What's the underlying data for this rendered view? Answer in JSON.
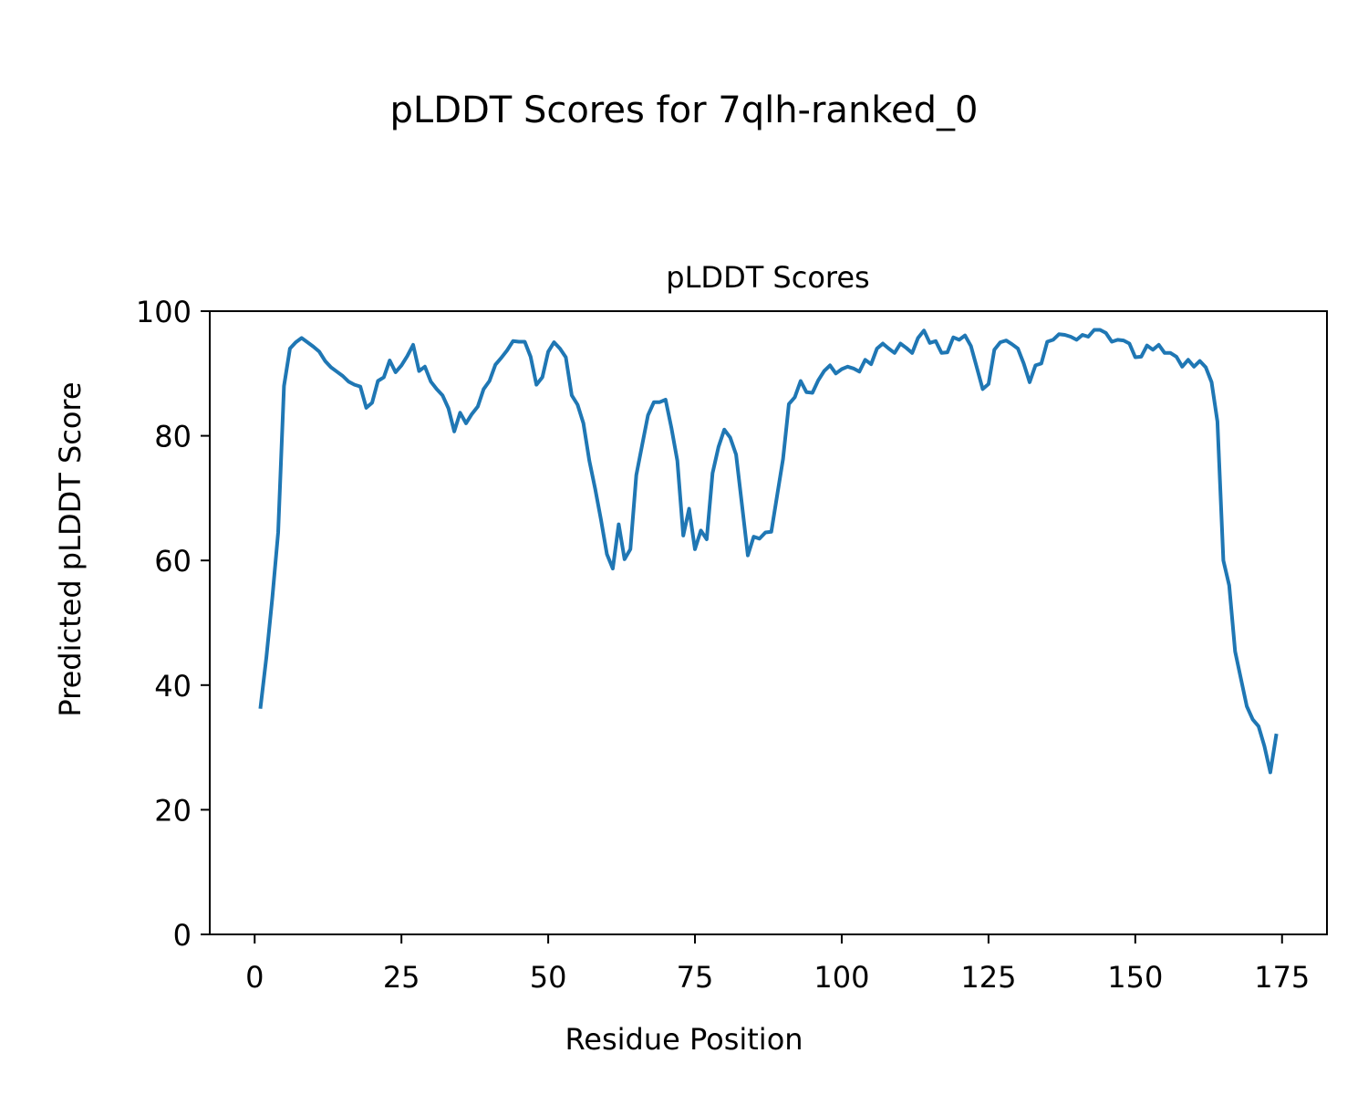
{
  "chart_data": {
    "type": "line",
    "suptitle": "pLDDT Scores for 7qlh-ranked_0",
    "title": "pLDDT Scores",
    "xlabel": "Residue Position",
    "ylabel": "Predicted pLDDT Score",
    "xlim": [
      -7.65,
      182.65
    ],
    "ylim": [
      0,
      100
    ],
    "xticks": [
      0,
      25,
      50,
      75,
      100,
      125,
      150,
      175
    ],
    "yticks": [
      0,
      20,
      40,
      60,
      80,
      100
    ],
    "grid": false,
    "line_color": "#1f77b4",
    "series": [
      {
        "x": [
          1,
          2,
          3,
          4,
          5,
          6,
          7,
          8,
          9,
          10,
          11,
          12,
          13,
          14,
          15,
          16,
          17,
          18,
          19,
          20,
          21,
          22,
          23,
          24,
          25,
          26,
          27,
          28,
          29,
          30,
          31,
          32,
          33,
          34,
          35,
          36,
          37,
          38,
          39,
          40,
          41,
          42,
          43,
          44,
          45,
          46,
          47,
          48,
          49,
          50,
          51,
          52,
          53,
          54,
          55,
          56,
          57,
          58,
          59,
          60,
          61,
          62,
          63,
          64,
          65,
          66,
          67,
          68,
          69,
          70,
          71,
          72,
          73,
          74,
          75,
          76,
          77,
          78,
          79,
          80,
          81,
          82,
          83,
          84,
          85,
          86,
          87,
          88,
          89,
          90,
          91,
          92,
          93,
          94,
          95,
          96,
          97,
          98,
          99,
          100,
          101,
          102,
          103,
          104,
          105,
          106,
          107,
          108,
          109,
          110,
          111,
          112,
          113,
          114,
          115,
          116,
          117,
          118,
          119,
          120,
          121,
          122,
          123,
          124,
          125,
          126,
          127,
          128,
          129,
          130,
          131,
          132,
          133,
          134,
          135,
          136,
          137,
          138,
          139,
          140,
          141,
          142,
          143,
          144,
          145,
          146,
          147,
          148,
          149,
          150,
          151,
          152,
          153,
          154,
          155,
          156,
          157,
          158,
          159,
          160,
          161,
          162,
          163,
          164,
          165,
          166,
          167,
          168,
          169,
          170,
          171,
          172,
          173,
          174
        ],
        "values": [
          36.5,
          44.5,
          54,
          64.5,
          88,
          94,
          95,
          95.7,
          95,
          94.3,
          93.5,
          92,
          91,
          90.3,
          89.6,
          88.7,
          88.2,
          87.9,
          84.5,
          85.3,
          88.8,
          89.4,
          92.1,
          90.2,
          91.3,
          92.8,
          94.6,
          90.4,
          91.1,
          88.7,
          87.5,
          86.5,
          84.4,
          80.7,
          83.7,
          82,
          83.5,
          84.7,
          87.5,
          88.8,
          91.4,
          92.5,
          93.7,
          95.2,
          95.1,
          95.1,
          92.7,
          88.2,
          89.4,
          93.5,
          95,
          94,
          92.6,
          86.5,
          85,
          82,
          76,
          71.5,
          66.5,
          61,
          58.7,
          65.8,
          60.2,
          61.8,
          73.7,
          78.5,
          83.3,
          85.4,
          85.4,
          85.8,
          81.2,
          76,
          64,
          68.3,
          61.8,
          64.8,
          63.4,
          74,
          78.2,
          81,
          79.7,
          77,
          69,
          60.8,
          63.8,
          63.5,
          64.5,
          64.6,
          70.5,
          76.3,
          85.1,
          86.2,
          88.8,
          87,
          86.9,
          88.9,
          90.4,
          91.3,
          90,
          90.7,
          91.1,
          90.8,
          90.3,
          92.2,
          91.5,
          94,
          94.8,
          94,
          93.3,
          94.8,
          94.1,
          93.3,
          95.7,
          96.9,
          94.9,
          95.2,
          93.3,
          93.4,
          95.8,
          95.4,
          96.1,
          94.4,
          91,
          87.5,
          88.3,
          93.8,
          95,
          95.3,
          94.7,
          94,
          91.6,
          88.6,
          91.3,
          91.6,
          95.1,
          95.4,
          96.3,
          96.2,
          95.9,
          95.4,
          96.2,
          95.9,
          97,
          97,
          96.5,
          95.1,
          95.4,
          95.3,
          94.8,
          92.6,
          92.7,
          94.5,
          93.8,
          94.6,
          93.3,
          93.3,
          92.7,
          91.1,
          92.2,
          91.1,
          92,
          91,
          88.6,
          82.3,
          60,
          56,
          45.4,
          41,
          36.6,
          34.5,
          33.4,
          30.2,
          26,
          31.9
        ]
      }
    ]
  }
}
